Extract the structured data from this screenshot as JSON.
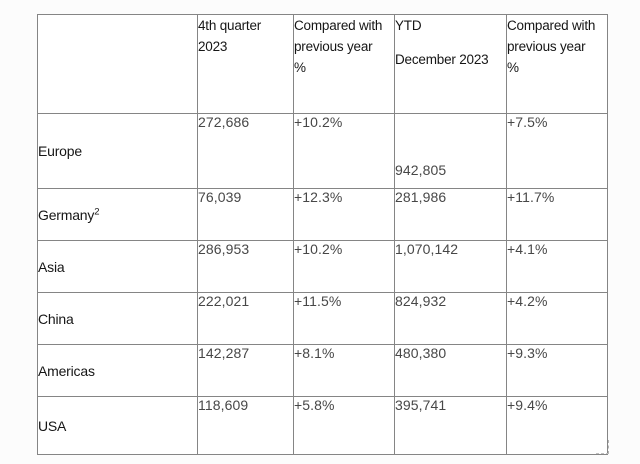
{
  "chart_data": {
    "type": "table",
    "columns": [
      "",
      "4th quarter 2023",
      "Compared with previous year %",
      "YTD December 2023",
      "Compared with previous year %"
    ],
    "rows": [
      [
        "Europe",
        "272,686",
        "+10.2%",
        "942,805",
        "+7.5%"
      ],
      [
        "Germany2",
        "76,039",
        "+12.3%",
        "281,986",
        "+11.7%"
      ],
      [
        "Asia",
        "286,953",
        "+10.2%",
        "1,070,142",
        "+4.1%"
      ],
      [
        "China",
        "222,021",
        "+11.5%",
        "824,932",
        "+4.2%"
      ],
      [
        "Americas",
        "142,287",
        "+8.1%",
        "480,380",
        "+9.3%"
      ],
      [
        "USA",
        "118,609",
        "+5.8%",
        "395,741",
        "+9.4%"
      ]
    ]
  },
  "colors": {
    "border": "#858585",
    "label_text": "#161616",
    "value_text": "#474747",
    "background": "#fcfcfc"
  },
  "table": {
    "headers": [
      {
        "line1": "",
        "line2": "",
        "line3": ""
      },
      {
        "line1": "4th quarter",
        "line2": "2023",
        "line3": ""
      },
      {
        "line1": "Compared with",
        "line2": "previous year",
        "line3": "%"
      },
      {
        "line1": "YTD",
        "line2": "December 2023",
        "line3": ""
      },
      {
        "line1": "Compared with",
        "line2": "previous year",
        "line3": "%"
      }
    ],
    "rows": [
      {
        "region": "Europe",
        "sup": "",
        "q4": "272,686",
        "q4_yoy": "+10.2%",
        "ytd": "942,805",
        "ytd_yoy": "+7.5%"
      },
      {
        "region": "Germany",
        "sup": "2",
        "q4": "76,039",
        "q4_yoy": "+12.3%",
        "ytd": "281,986",
        "ytd_yoy": "+11.7%"
      },
      {
        "region": "Asia",
        "sup": "",
        "q4": "286,953",
        "q4_yoy": "+10.2%",
        "ytd": "1,070,142",
        "ytd_yoy": "+4.1%"
      },
      {
        "region": "China",
        "sup": "",
        "q4": "222,021",
        "q4_yoy": "+11.5%",
        "ytd": "824,932",
        "ytd_yoy": "+4.2%"
      },
      {
        "region": "Americas",
        "sup": "",
        "q4": "142,287",
        "q4_yoy": "+8.1%",
        "ytd": "480,380",
        "ytd_yoy": "+9.3%"
      },
      {
        "region": "USA",
        "sup": "",
        "q4": "118,609",
        "q4_yoy": "+5.8%",
        "ytd": "395,741",
        "ytd_yoy": "+9.4%"
      }
    ]
  }
}
